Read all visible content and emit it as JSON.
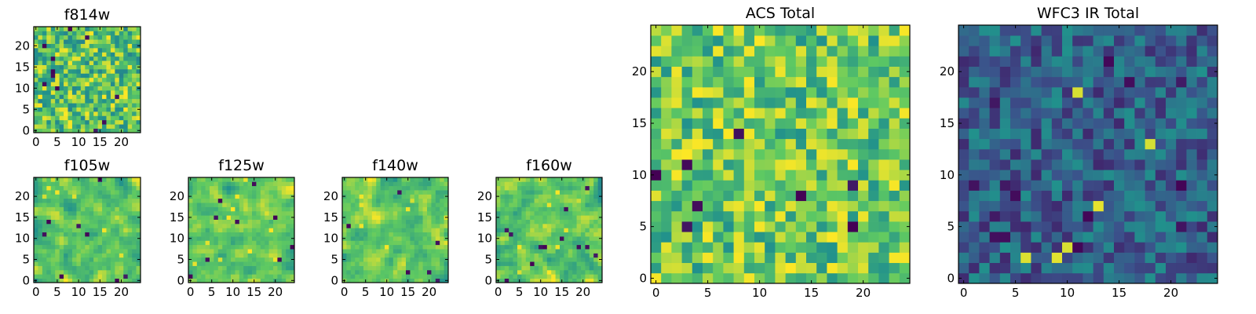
{
  "figure": {
    "colormap": [
      "#440154",
      "#3b528b",
      "#21918c",
      "#5ec962",
      "#fde725"
    ],
    "frame_color": "#000000"
  },
  "chart_data": [
    {
      "type": "heatmap",
      "title": "f814w",
      "grid_size": 25,
      "seed": 11,
      "smooth": 0,
      "xlim": [
        0,
        24
      ],
      "ylim": [
        0,
        24
      ],
      "xticks": [
        0,
        5,
        10,
        15,
        20
      ],
      "yticks": [
        0,
        5,
        10,
        15,
        20
      ],
      "value_range": [
        0.45,
        1.0
      ],
      "dark_spots": 12,
      "bright_spots": 10
    },
    {
      "type": "heatmap",
      "title": "f105w",
      "grid_size": 25,
      "seed": 23,
      "smooth": 1,
      "xlim": [
        0,
        24
      ],
      "ylim": [
        0,
        24
      ],
      "xticks": [
        0,
        5,
        10,
        15,
        20
      ],
      "yticks": [
        0,
        5,
        10,
        15,
        20
      ],
      "value_range": [
        0.5,
        1.0
      ],
      "dark_spots": 8,
      "bright_spots": 8
    },
    {
      "type": "heatmap",
      "title": "f125w",
      "grid_size": 25,
      "seed": 37,
      "smooth": 1,
      "xlim": [
        0,
        24
      ],
      "ylim": [
        0,
        24
      ],
      "xticks": [
        0,
        5,
        10,
        15,
        20
      ],
      "yticks": [
        0,
        5,
        10,
        15,
        20
      ],
      "value_range": [
        0.5,
        1.0
      ],
      "dark_spots": 9,
      "bright_spots": 10
    },
    {
      "type": "heatmap",
      "title": "f140w",
      "grid_size": 25,
      "seed": 41,
      "smooth": 1,
      "xlim": [
        0,
        24
      ],
      "ylim": [
        0,
        24
      ],
      "xticks": [
        0,
        5,
        10,
        15,
        20
      ],
      "yticks": [
        0,
        5,
        10,
        15,
        20
      ],
      "value_range": [
        0.5,
        1.0
      ],
      "dark_spots": 6,
      "bright_spots": 8
    },
    {
      "type": "heatmap",
      "title": "f160w",
      "grid_size": 25,
      "seed": 53,
      "smooth": 1,
      "xlim": [
        0,
        24
      ],
      "ylim": [
        0,
        24
      ],
      "xticks": [
        0,
        5,
        10,
        15,
        20
      ],
      "yticks": [
        0,
        5,
        10,
        15,
        20
      ],
      "value_range": [
        0.45,
        1.0
      ],
      "dark_spots": 12,
      "bright_spots": 8
    },
    {
      "type": "heatmap",
      "title": "ACS Total",
      "grid_size": 25,
      "seed": 67,
      "smooth": 0,
      "xlim": [
        0,
        24
      ],
      "ylim": [
        0,
        24
      ],
      "xticks": [
        0,
        5,
        10,
        15,
        20
      ],
      "yticks": [
        0,
        5,
        10,
        15,
        20
      ],
      "value_range": [
        0.5,
        1.0
      ],
      "dark_spots": 8,
      "bright_spots": 14
    },
    {
      "type": "heatmap",
      "title": "WFC3 IR Total",
      "grid_size": 25,
      "seed": 79,
      "smooth": 0,
      "xlim": [
        0,
        24
      ],
      "ylim": [
        0,
        24
      ],
      "xticks": [
        0,
        5,
        10,
        15,
        20
      ],
      "yticks": [
        0,
        5,
        10,
        15,
        20
      ],
      "value_range": [
        0.12,
        0.5
      ],
      "dark_spots": 14,
      "bright_spots": 6
    }
  ]
}
